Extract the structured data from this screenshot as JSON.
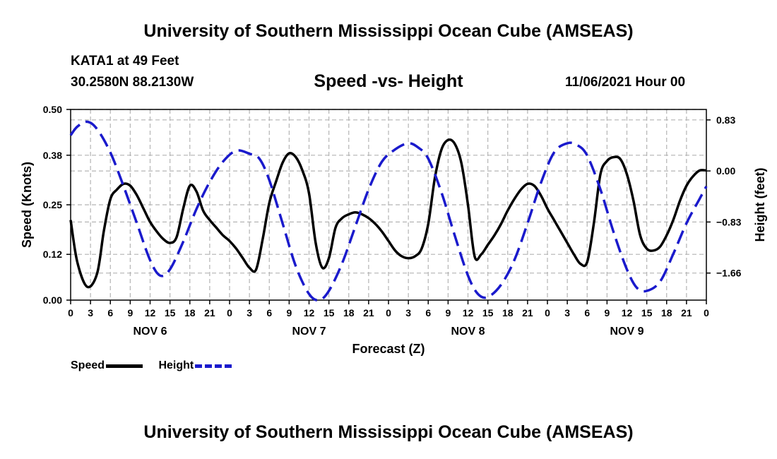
{
  "header": {
    "title": "University of Southern Mississippi Ocean Cube (AMSEAS)",
    "station": "KATA1 at 49 Feet",
    "coordinates": "30.2580N  88.2130W",
    "subtitle": "Speed -vs- Height",
    "datetime": "11/06/2021 Hour 00"
  },
  "footer": {
    "title": "University of Southern Mississippi Ocean Cube (AMSEAS)"
  },
  "legend": {
    "speed_label": "Speed",
    "height_label": "Height"
  },
  "colors": {
    "speed": "#000000",
    "height": "#1a1acc",
    "grid": "#b4b4b4"
  },
  "chart_data": {
    "type": "line",
    "title": "Speed -vs- Height",
    "xlabel": "Forecast (Z)",
    "ylabel": "Speed (Knots)",
    "ylabel_right": "Height (feet)",
    "xlim": [
      0,
      96
    ],
    "ylim": [
      0,
      0.5
    ],
    "ylim_right": [
      -2.1,
      1.0
    ],
    "x_ticks": [
      0,
      3,
      6,
      9,
      12,
      15,
      18,
      21,
      24,
      27,
      30,
      33,
      36,
      39,
      42,
      45,
      48,
      51,
      54,
      57,
      60,
      63,
      66,
      69,
      72,
      75,
      78,
      81,
      84,
      87,
      90,
      93,
      96
    ],
    "x_tick_labels": [
      "0",
      "3",
      "6",
      "9",
      "12",
      "15",
      "18",
      "21",
      "0",
      "3",
      "6",
      "9",
      "12",
      "15",
      "18",
      "21",
      "0",
      "3",
      "6",
      "9",
      "12",
      "15",
      "18",
      "21",
      "0",
      "3",
      "6",
      "9",
      "12",
      "15",
      "18",
      "21",
      "0"
    ],
    "day_labels": [
      {
        "label": "NOV 6",
        "x": 12
      },
      {
        "label": "NOV 7",
        "x": 36
      },
      {
        "label": "NOV 8",
        "x": 60
      },
      {
        "label": "NOV 9",
        "x": 84
      }
    ],
    "y_ticks": [
      0.0,
      0.12,
      0.25,
      0.38,
      0.5
    ],
    "y_tick_labels": [
      "0.00",
      "0.12",
      "0.25",
      "0.38",
      "0.50"
    ],
    "y_right_ticks": [
      0.83,
      0.0,
      -0.83,
      -1.66
    ],
    "y_right_tick_labels": [
      "0.83",
      "0.00",
      "−0.83",
      "−1.66"
    ],
    "grid": true,
    "series": [
      {
        "name": "Speed",
        "axis": "left",
        "style": "solid",
        "x": [
          0,
          1,
          2.5,
          4,
          5,
          6,
          7,
          8,
          9,
          10,
          11,
          12,
          13,
          14,
          15,
          16,
          17,
          18,
          19,
          20,
          21,
          22,
          23,
          24,
          25,
          26,
          27,
          28,
          29,
          30,
          31,
          32,
          33,
          34,
          35,
          36,
          37,
          38,
          39,
          40,
          41,
          42,
          43,
          44,
          45,
          46,
          47,
          48,
          49,
          50,
          51,
          52,
          53,
          54,
          55,
          56,
          57,
          58,
          59,
          60,
          61,
          62,
          63,
          64,
          65,
          66,
          67,
          68,
          69,
          70,
          71,
          72,
          73,
          74,
          75,
          76,
          77,
          78,
          79,
          80,
          81,
          82,
          83,
          84,
          85,
          86,
          87,
          88,
          89,
          90,
          91,
          92,
          93,
          94,
          95,
          96
        ],
        "values": [
          0.21,
          0.1,
          0.035,
          0.07,
          0.18,
          0.265,
          0.29,
          0.305,
          0.3,
          0.275,
          0.24,
          0.205,
          0.18,
          0.16,
          0.15,
          0.165,
          0.24,
          0.3,
          0.285,
          0.235,
          0.21,
          0.19,
          0.17,
          0.155,
          0.135,
          0.11,
          0.085,
          0.08,
          0.16,
          0.255,
          0.31,
          0.36,
          0.385,
          0.375,
          0.34,
          0.28,
          0.15,
          0.085,
          0.11,
          0.19,
          0.215,
          0.225,
          0.23,
          0.225,
          0.215,
          0.2,
          0.18,
          0.155,
          0.13,
          0.115,
          0.11,
          0.115,
          0.135,
          0.2,
          0.32,
          0.395,
          0.42,
          0.41,
          0.36,
          0.25,
          0.115,
          0.12,
          0.145,
          0.17,
          0.2,
          0.235,
          0.265,
          0.29,
          0.305,
          0.3,
          0.275,
          0.24,
          0.21,
          0.18,
          0.15,
          0.12,
          0.095,
          0.1,
          0.2,
          0.33,
          0.365,
          0.375,
          0.37,
          0.33,
          0.26,
          0.17,
          0.135,
          0.13,
          0.14,
          0.17,
          0.21,
          0.26,
          0.3,
          0.325,
          0.34,
          0.34
        ]
      },
      {
        "name": "Height",
        "axis": "right",
        "style": "dashed",
        "x": [
          0,
          1,
          2.5,
          4,
          6,
          8,
          10,
          12,
          13.5,
          15,
          17,
          19,
          21,
          23,
          25,
          27,
          28.5,
          30,
          32,
          34,
          36,
          37.5,
          39,
          41,
          43,
          45,
          47,
          49,
          51,
          52.5,
          54,
          56,
          58,
          60,
          61.5,
          63,
          65,
          67,
          69,
          71,
          73,
          75,
          76.5,
          78,
          80,
          82,
          84,
          85.5,
          87,
          89,
          91,
          93,
          95,
          96
        ],
        "values": [
          0.58,
          0.72,
          0.8,
          0.68,
          0.3,
          -0.25,
          -0.85,
          -1.45,
          -1.7,
          -1.6,
          -1.15,
          -0.62,
          -0.18,
          0.15,
          0.33,
          0.28,
          0.2,
          -0.15,
          -0.85,
          -1.55,
          -2.0,
          -2.1,
          -1.95,
          -1.5,
          -0.9,
          -0.3,
          0.15,
          0.35,
          0.45,
          0.38,
          0.2,
          -0.35,
          -1.05,
          -1.7,
          -2.0,
          -2.05,
          -1.85,
          -1.45,
          -0.85,
          -0.2,
          0.3,
          0.45,
          0.42,
          0.25,
          -0.3,
          -1.0,
          -1.6,
          -1.9,
          -1.95,
          -1.8,
          -1.35,
          -0.85,
          -0.45,
          -0.25
        ]
      }
    ]
  }
}
